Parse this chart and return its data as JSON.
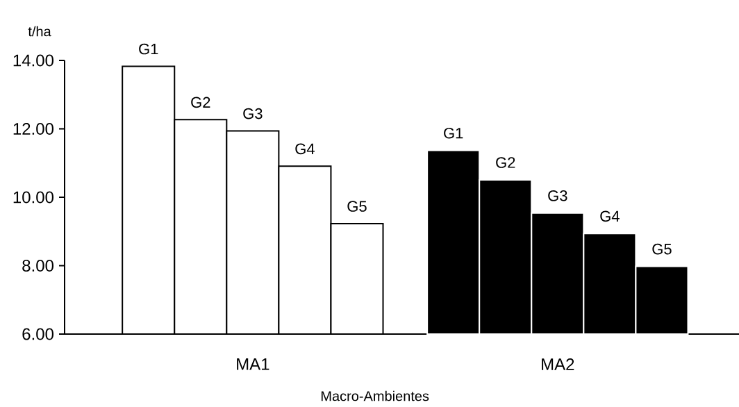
{
  "chart_data": {
    "type": "bar",
    "ylabel": "t/ha",
    "xlabel": "Macro-Ambientes",
    "categories": [
      "MA1",
      "MA2"
    ],
    "series": [
      {
        "name": "G1",
        "colors": [
          "#ffffff",
          "#000000"
        ],
        "values": [
          13.83,
          11.37
        ]
      },
      {
        "name": "G2",
        "colors": [
          "#ffffff",
          "#000000"
        ],
        "values": [
          12.27,
          10.51
        ]
      },
      {
        "name": "G3",
        "colors": [
          "#ffffff",
          "#000000"
        ],
        "values": [
          11.94,
          9.54
        ]
      },
      {
        "name": "G4",
        "colors": [
          "#ffffff",
          "#000000"
        ],
        "values": [
          10.91,
          8.94
        ]
      },
      {
        "name": "G5",
        "colors": [
          "#ffffff",
          "#000000"
        ],
        "values": [
          9.23,
          7.98
        ]
      }
    ],
    "ylim": [
      6,
      14
    ],
    "yticks": [
      {
        "value": 6,
        "label": "6.00"
      },
      {
        "value": 8,
        "label": "8.00"
      },
      {
        "value": 10,
        "label": "10.00"
      },
      {
        "value": 12,
        "label": "12.00"
      },
      {
        "value": 14,
        "label": "14.00"
      }
    ]
  }
}
